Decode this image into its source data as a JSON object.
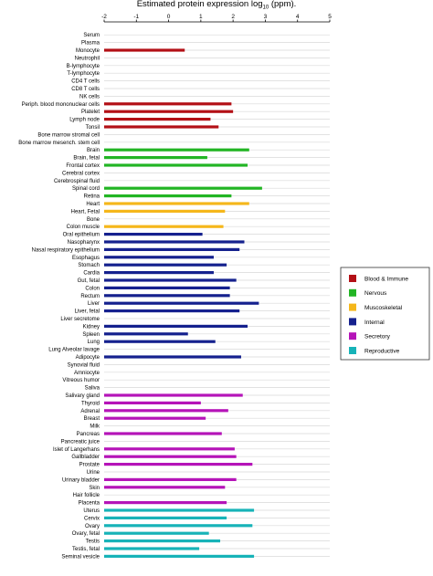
{
  "chart_data": {
    "type": "bar",
    "orientation": "horizontal",
    "title_prefix": "Estimated protein expression log",
    "title_subscript": "10",
    "title_suffix": " (ppm).",
    "xlim": [
      -2,
      5
    ],
    "xticks": [
      {
        "value": -2,
        "label": "-2"
      },
      {
        "value": -1,
        "label": "-1"
      },
      {
        "value": 0,
        "label": "0"
      },
      {
        "value": 1,
        "label": "1"
      },
      {
        "value": 2,
        "label": "2"
      },
      {
        "value": 3,
        "label": "3"
      },
      {
        "value": 4,
        "label": "4"
      },
      {
        "value": 5,
        "label": "5"
      }
    ],
    "grid": "horizontal",
    "legend_position": "right",
    "series": [
      {
        "name": "Blood & Immune",
        "color": "#b31016"
      },
      {
        "name": "Nervous",
        "color": "#22b524"
      },
      {
        "name": "Muscoskeletal",
        "color": "#f5b71b"
      },
      {
        "name": "Internal",
        "color": "#15218e"
      },
      {
        "name": "Secretory",
        "color": "#b514b8"
      },
      {
        "name": "Reproductive",
        "color": "#17b3b8"
      }
    ],
    "categories": [
      {
        "label": "Serum",
        "series": 0,
        "value": null
      },
      {
        "label": "Plasma",
        "series": 0,
        "value": null
      },
      {
        "label": "Monocyte",
        "series": 0,
        "value": 0.5
      },
      {
        "label": "Neutrophil",
        "series": 0,
        "value": null
      },
      {
        "label": "B-lymphocyte",
        "series": 0,
        "value": null
      },
      {
        "label": "T-lymphocyte",
        "series": 0,
        "value": null
      },
      {
        "label": "CD4 T cells",
        "series": 0,
        "value": null
      },
      {
        "label": "CD8 T cells",
        "series": 0,
        "value": null
      },
      {
        "label": "NK cells",
        "series": 0,
        "value": null
      },
      {
        "label": "Periph. blood mononuclear cells",
        "series": 0,
        "value": 1.95
      },
      {
        "label": "Platelet",
        "series": 0,
        "value": 2.0
      },
      {
        "label": "Lymph node",
        "series": 0,
        "value": 1.3
      },
      {
        "label": "Tonsil",
        "series": 0,
        "value": 1.55
      },
      {
        "label": "Bone marrow stromal cell",
        "series": 0,
        "value": null
      },
      {
        "label": "Bone marrow mesench. stem cell",
        "series": 0,
        "value": null
      },
      {
        "label": "Brain",
        "series": 1,
        "value": 2.5
      },
      {
        "label": "Brain, fetal",
        "series": 1,
        "value": 1.2
      },
      {
        "label": "Frontal cortex",
        "series": 1,
        "value": 2.45
      },
      {
        "label": "Cerebral cortex",
        "series": 1,
        "value": null
      },
      {
        "label": "Cerebrospinal fluid",
        "series": 1,
        "value": null
      },
      {
        "label": "Spinal cord",
        "series": 1,
        "value": 2.9
      },
      {
        "label": "Retina",
        "series": 1,
        "value": 1.95
      },
      {
        "label": "Heart",
        "series": 2,
        "value": 2.5
      },
      {
        "label": "Heart, Fetal",
        "series": 2,
        "value": 1.75
      },
      {
        "label": "Bone",
        "series": 2,
        "value": null
      },
      {
        "label": "Colon muscle",
        "series": 2,
        "value": 1.7
      },
      {
        "label": "Oral epithelium",
        "series": 3,
        "value": 1.05
      },
      {
        "label": "Nasopharynx",
        "series": 3,
        "value": 2.35
      },
      {
        "label": "Nasal respiratory epithelium",
        "series": 3,
        "value": 2.2
      },
      {
        "label": "Esophagus",
        "series": 3,
        "value": 1.4
      },
      {
        "label": "Stomach",
        "series": 3,
        "value": 1.8
      },
      {
        "label": "Cardia",
        "series": 3,
        "value": 1.4
      },
      {
        "label": "Gut, fetal",
        "series": 3,
        "value": 2.1
      },
      {
        "label": "Colon",
        "series": 3,
        "value": 1.9
      },
      {
        "label": "Rectum",
        "series": 3,
        "value": 1.9
      },
      {
        "label": "Liver",
        "series": 3,
        "value": 2.8
      },
      {
        "label": "Liver, fetal",
        "series": 3,
        "value": 2.2
      },
      {
        "label": "Liver secretome",
        "series": 3,
        "value": null
      },
      {
        "label": "Kidney",
        "series": 3,
        "value": 2.45
      },
      {
        "label": "Spleen",
        "series": 3,
        "value": 0.6
      },
      {
        "label": "Lung",
        "series": 3,
        "value": 1.45
      },
      {
        "label": "Lung Alveolar lavage",
        "series": 3,
        "value": null
      },
      {
        "label": "Adipocyte",
        "series": 3,
        "value": 2.25
      },
      {
        "label": "Synovial fluid",
        "series": 4,
        "value": null
      },
      {
        "label": "Amniocyte",
        "series": 4,
        "value": null
      },
      {
        "label": "Vitreous humor",
        "series": 4,
        "value": null
      },
      {
        "label": "Saliva",
        "series": 4,
        "value": null
      },
      {
        "label": "Salivary gland",
        "series": 4,
        "value": 2.3
      },
      {
        "label": "Thyroid",
        "series": 4,
        "value": 1.0
      },
      {
        "label": "Adrenal",
        "series": 4,
        "value": 1.85
      },
      {
        "label": "Breast",
        "series": 4,
        "value": 1.15
      },
      {
        "label": "Milk",
        "series": 4,
        "value": null
      },
      {
        "label": "Pancreas",
        "series": 4,
        "value": 1.65
      },
      {
        "label": "Pancreatic juice",
        "series": 4,
        "value": null
      },
      {
        "label": "Islet of Langerhans",
        "series": 4,
        "value": 2.05
      },
      {
        "label": "Gallbladder",
        "series": 4,
        "value": 2.1
      },
      {
        "label": "Prostate",
        "series": 4,
        "value": 2.6
      },
      {
        "label": "Urine",
        "series": 4,
        "value": null
      },
      {
        "label": "Urinary bladder",
        "series": 4,
        "value": 2.1
      },
      {
        "label": "Skin",
        "series": 4,
        "value": 1.75
      },
      {
        "label": "Hair follicle",
        "series": 4,
        "value": null
      },
      {
        "label": "Placenta",
        "series": 4,
        "value": 1.8
      },
      {
        "label": "Uterus",
        "series": 5,
        "value": 2.65
      },
      {
        "label": "Cervix",
        "series": 5,
        "value": 1.8
      },
      {
        "label": "Ovary",
        "series": 5,
        "value": 2.6
      },
      {
        "label": "Ovary, fetal",
        "series": 5,
        "value": 1.25
      },
      {
        "label": "Testis",
        "series": 5,
        "value": 1.6
      },
      {
        "label": "Testis, fetal",
        "series": 5,
        "value": 0.95
      },
      {
        "label": "Seminal vesicle",
        "series": 5,
        "value": 2.65
      }
    ]
  }
}
